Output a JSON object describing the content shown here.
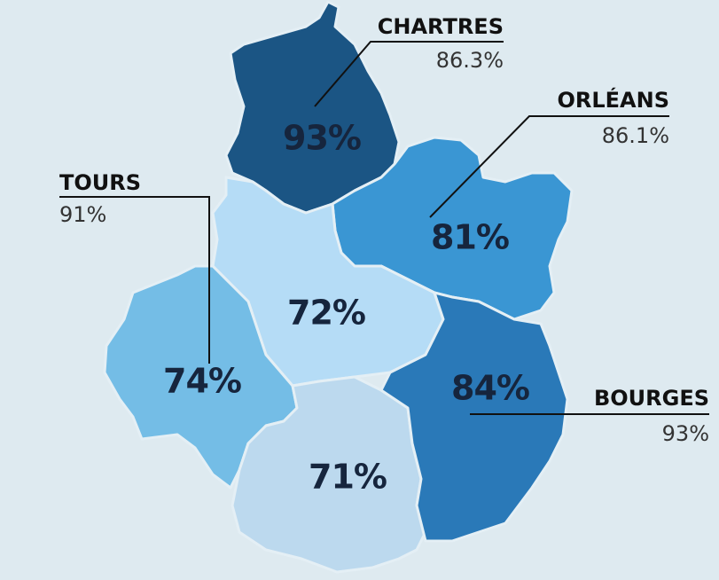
{
  "regions": [
    {
      "label": "93%",
      "color": "#1b5584"
    },
    {
      "label": "81%",
      "color": "#3a96d3"
    },
    {
      "label": "72%",
      "color": "#b5dcf6"
    },
    {
      "label": "74%",
      "color": "#74bde6"
    },
    {
      "label": "71%",
      "color": "#bcd9ee"
    },
    {
      "label": "84%",
      "color": "#2a79b8"
    }
  ],
  "callouts": [
    {
      "name": "CHARTRES",
      "value": "86.3%"
    },
    {
      "name": "ORLÉANS",
      "value": "86.1%"
    },
    {
      "name": "TOURS",
      "value": "91%"
    },
    {
      "name": "BOURGES",
      "value": "93%"
    }
  ]
}
